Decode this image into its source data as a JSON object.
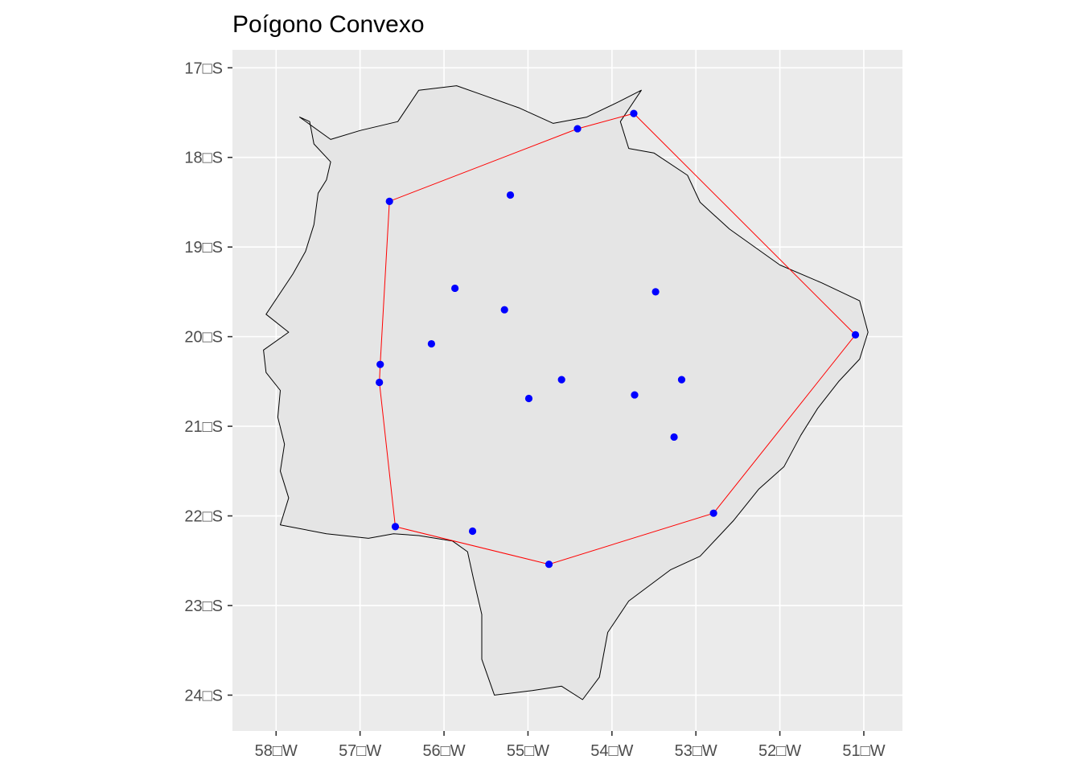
{
  "title": "Poígono Convexo",
  "colors": {
    "panel_background": "#ebebeb",
    "grid": "#ffffff",
    "state_fill": "#e5e5e5",
    "state_outline": "#000000",
    "hull_line": "#ff0000",
    "points": "#0000ff",
    "tick_text": "#4d4d4d"
  },
  "chart_data": {
    "type": "scatter",
    "title": "Poígono Convexo",
    "xlim": [
      -58.52,
      -50.54
    ],
    "ylim": [
      -24.4,
      -16.8
    ],
    "grid": true,
    "x_ticks": [
      {
        "value": -58,
        "label": "58□W"
      },
      {
        "value": -57,
        "label": "57□W"
      },
      {
        "value": -56,
        "label": "56□W"
      },
      {
        "value": -55,
        "label": "55□W"
      },
      {
        "value": -54,
        "label": "54□W"
      },
      {
        "value": -53,
        "label": "53□W"
      },
      {
        "value": -52,
        "label": "52□W"
      },
      {
        "value": -51,
        "label": "51□W"
      }
    ],
    "y_ticks": [
      {
        "value": -17,
        "label": "17□S"
      },
      {
        "value": -18,
        "label": "18□S"
      },
      {
        "value": -19,
        "label": "19□S"
      },
      {
        "value": -20,
        "label": "20□S"
      },
      {
        "value": -21,
        "label": "21□S"
      },
      {
        "value": -22,
        "label": "22□S"
      },
      {
        "value": -23,
        "label": "23□S"
      },
      {
        "value": -24,
        "label": "24□S"
      }
    ],
    "points": [
      {
        "lon": -53.74,
        "lat": -17.51
      },
      {
        "lon": -54.41,
        "lat": -17.68
      },
      {
        "lon": -56.65,
        "lat": -18.49
      },
      {
        "lon": -55.21,
        "lat": -18.42
      },
      {
        "lon": -55.87,
        "lat": -19.46
      },
      {
        "lon": -55.28,
        "lat": -19.7
      },
      {
        "lon": -53.48,
        "lat": -19.5
      },
      {
        "lon": -51.1,
        "lat": -19.98
      },
      {
        "lon": -56.15,
        "lat": -20.08
      },
      {
        "lon": -56.76,
        "lat": -20.31
      },
      {
        "lon": -56.77,
        "lat": -20.51
      },
      {
        "lon": -54.6,
        "lat": -20.48
      },
      {
        "lon": -54.99,
        "lat": -20.69
      },
      {
        "lon": -53.73,
        "lat": -20.65
      },
      {
        "lon": -53.17,
        "lat": -20.48
      },
      {
        "lon": -53.26,
        "lat": -21.12
      },
      {
        "lon": -52.79,
        "lat": -21.97
      },
      {
        "lon": -56.58,
        "lat": -22.12
      },
      {
        "lon": -55.66,
        "lat": -22.17
      },
      {
        "lon": -54.75,
        "lat": -22.54
      }
    ],
    "hull": [
      {
        "lon": -53.74,
        "lat": -17.51
      },
      {
        "lon": -51.1,
        "lat": -19.98
      },
      {
        "lon": -52.79,
        "lat": -21.97
      },
      {
        "lon": -54.75,
        "lat": -22.54
      },
      {
        "lon": -56.58,
        "lat": -22.12
      },
      {
        "lon": -56.77,
        "lat": -20.51
      },
      {
        "lon": -56.76,
        "lat": -20.31
      },
      {
        "lon": -56.65,
        "lat": -18.49
      },
      {
        "lon": -54.41,
        "lat": -17.68
      }
    ],
    "state_outline": [
      [
        -57.72,
        -17.55
      ],
      [
        -57.6,
        -17.6
      ],
      [
        -57.55,
        -17.85
      ],
      [
        -57.35,
        -18.05
      ],
      [
        -57.4,
        -18.25
      ],
      [
        -57.5,
        -18.4
      ],
      [
        -57.55,
        -18.75
      ],
      [
        -57.65,
        -19.05
      ],
      [
        -57.8,
        -19.3
      ],
      [
        -58.12,
        -19.75
      ],
      [
        -57.85,
        -19.95
      ],
      [
        -58.15,
        -20.15
      ],
      [
        -58.12,
        -20.4
      ],
      [
        -57.95,
        -20.6
      ],
      [
        -57.98,
        -20.9
      ],
      [
        -57.9,
        -21.2
      ],
      [
        -57.95,
        -21.5
      ],
      [
        -57.85,
        -21.8
      ],
      [
        -57.95,
        -22.1
      ],
      [
        -57.4,
        -22.2
      ],
      [
        -56.9,
        -22.25
      ],
      [
        -56.6,
        -22.2
      ],
      [
        -56.3,
        -22.22
      ],
      [
        -55.9,
        -22.28
      ],
      [
        -55.72,
        -22.4
      ],
      [
        -55.65,
        -22.7
      ],
      [
        -55.55,
        -23.1
      ],
      [
        -55.55,
        -23.6
      ],
      [
        -55.4,
        -24.0
      ],
      [
        -54.95,
        -23.95
      ],
      [
        -54.6,
        -23.9
      ],
      [
        -54.35,
        -24.05
      ],
      [
        -54.15,
        -23.8
      ],
      [
        -54.05,
        -23.3
      ],
      [
        -53.8,
        -22.95
      ],
      [
        -53.3,
        -22.6
      ],
      [
        -52.95,
        -22.45
      ],
      [
        -52.55,
        -22.05
      ],
      [
        -52.25,
        -21.7
      ],
      [
        -51.95,
        -21.45
      ],
      [
        -51.75,
        -21.1
      ],
      [
        -51.55,
        -20.8
      ],
      [
        -51.3,
        -20.5
      ],
      [
        -51.05,
        -20.25
      ],
      [
        -50.95,
        -19.95
      ],
      [
        -51.05,
        -19.6
      ],
      [
        -51.5,
        -19.4
      ],
      [
        -52.0,
        -19.2
      ],
      [
        -52.6,
        -18.8
      ],
      [
        -52.95,
        -18.5
      ],
      [
        -53.1,
        -18.2
      ],
      [
        -53.5,
        -17.95
      ],
      [
        -53.8,
        -17.9
      ],
      [
        -53.9,
        -17.6
      ],
      [
        -53.65,
        -17.25
      ],
      [
        -53.92,
        -17.38
      ],
      [
        -54.3,
        -17.55
      ],
      [
        -54.7,
        -17.62
      ],
      [
        -55.1,
        -17.45
      ],
      [
        -55.55,
        -17.3
      ],
      [
        -55.85,
        -17.2
      ],
      [
        -56.3,
        -17.25
      ],
      [
        -56.55,
        -17.6
      ],
      [
        -57.0,
        -17.7
      ],
      [
        -57.35,
        -17.8
      ],
      [
        -57.72,
        -17.55
      ]
    ]
  }
}
